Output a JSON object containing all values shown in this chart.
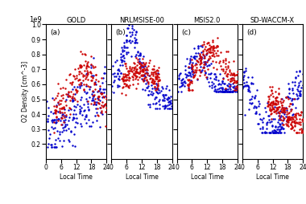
{
  "panels": [
    "GOLD",
    "NRLMSISE-00",
    "MSIS2.0",
    "SD-WACCM-X"
  ],
  "panel_labels": [
    "(a)",
    "(b)",
    "(c)",
    "(d)"
  ],
  "ylabel": "O2 Density [cm^-3]",
  "xlabel": "Local Time",
  "ylim": [
    0.1,
    1.0
  ],
  "yticks": [
    0.2,
    0.3,
    0.4,
    0.5,
    0.6,
    0.7,
    0.8,
    0.9,
    1.0
  ],
  "xticks": [
    0,
    6,
    12,
    18,
    24
  ],
  "xlim": [
    0,
    24
  ],
  "scale_label": "1e9",
  "red_color": "#cc0000",
  "blue_color": "#0000cc",
  "marker_size": 3,
  "background": "#ffffff",
  "seed": 42,
  "n_points": 200
}
